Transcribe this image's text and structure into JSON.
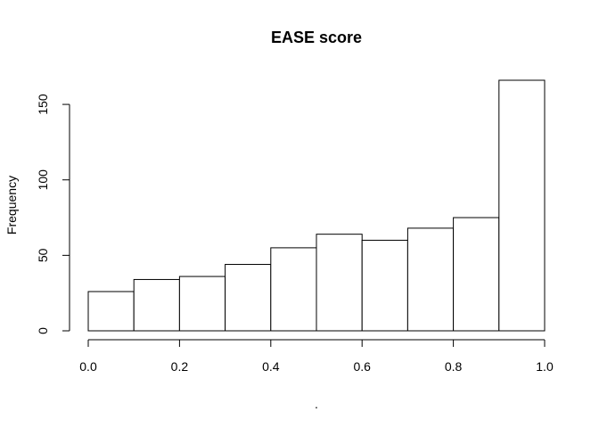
{
  "chart_data": {
    "type": "bar",
    "title": "EASE score",
    "xlabel": ".",
    "ylabel": "Frequency",
    "bins": [
      {
        "x0": 0.0,
        "x1": 0.1,
        "value": 26
      },
      {
        "x0": 0.1,
        "x1": 0.2,
        "value": 34
      },
      {
        "x0": 0.2,
        "x1": 0.3,
        "value": 36
      },
      {
        "x0": 0.3,
        "x1": 0.4,
        "value": 44
      },
      {
        "x0": 0.4,
        "x1": 0.5,
        "value": 55
      },
      {
        "x0": 0.5,
        "x1": 0.6,
        "value": 64
      },
      {
        "x0": 0.6,
        "x1": 0.7,
        "value": 60
      },
      {
        "x0": 0.7,
        "x1": 0.8,
        "value": 68
      },
      {
        "x0": 0.8,
        "x1": 0.9,
        "value": 75
      },
      {
        "x0": 0.9,
        "x1": 1.0,
        "value": 166
      }
    ],
    "xlim": [
      0,
      1
    ],
    "ylim": [
      0,
      166
    ],
    "xticks": [
      "0.0",
      "0.2",
      "0.4",
      "0.6",
      "0.8",
      "1.0"
    ],
    "yticks": [
      "0",
      "50",
      "100",
      "150"
    ],
    "grid": false,
    "bar_fill": "#ffffff",
    "bar_stroke": "#000000"
  }
}
